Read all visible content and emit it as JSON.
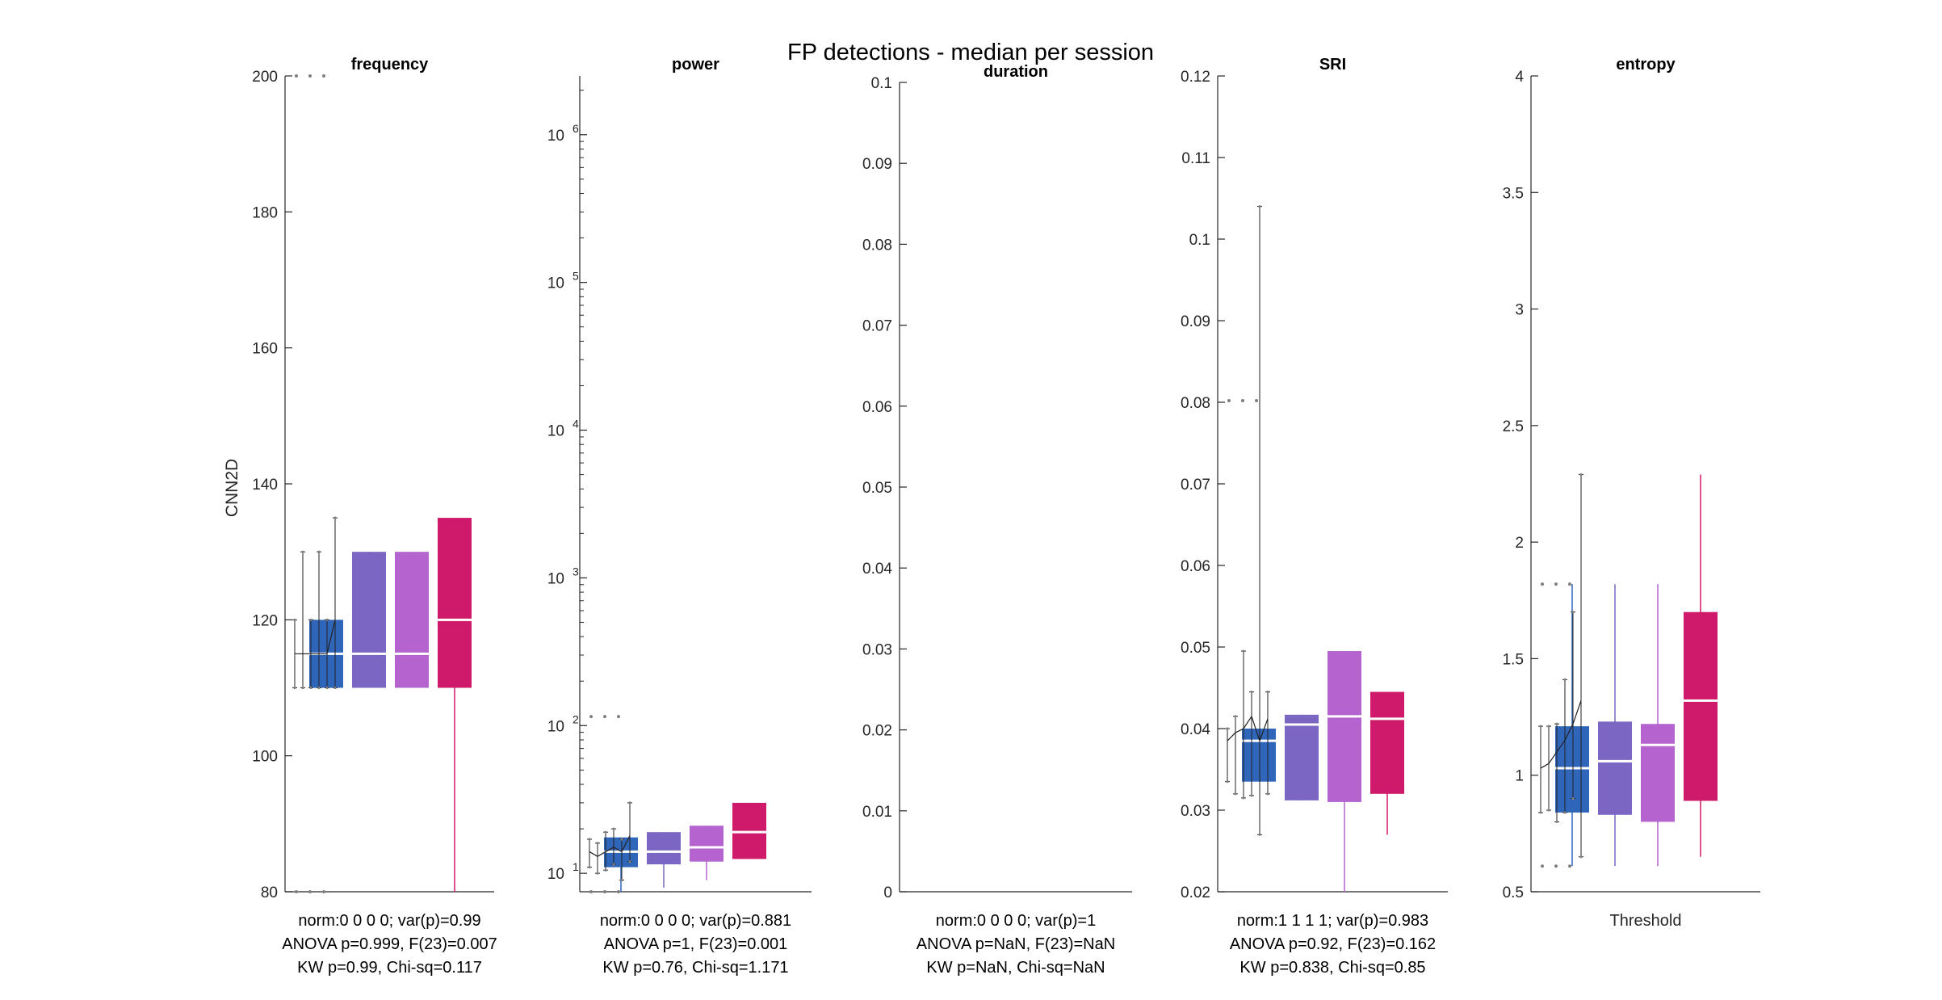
{
  "figure": {
    "title": "FP detections - median per session",
    "ylabel": "CNN2D",
    "xlabel_last": "Threshold"
  },
  "colors": {
    "blue": "#2F66BA",
    "violet": "#7B66C4",
    "orchid": "#B463CF",
    "magenta": "#CF1A6B",
    "axis": "#262626",
    "grid_marker": "#7f7f7f",
    "median_line": "#ffffff"
  },
  "chart_data": [
    {
      "type": "box",
      "title": "frequency",
      "yscale": "linear",
      "ylim": [
        80,
        200
      ],
      "yticks": [
        80,
        100,
        120,
        140,
        160,
        180,
        200
      ],
      "ytick_labels": [
        "80",
        "100",
        "120",
        "140",
        "160",
        "180",
        "200"
      ],
      "boxes": [
        {
          "q1": 110,
          "median": 115,
          "q3": 120,
          "whisker_low": 110,
          "whisker_high": 120
        },
        {
          "q1": 110,
          "median": 115,
          "q3": 130,
          "whisker_low": 110,
          "whisker_high": 130
        },
        {
          "q1": 110,
          "median": 115,
          "q3": 130,
          "whisker_low": 110,
          "whisker_high": 130
        },
        {
          "q1": 110,
          "median": 120,
          "q3": 135,
          "whisker_low": 80,
          "whisker_high": 135
        }
      ],
      "outlier_dots_top": 200,
      "outlier_dots_bottom": 80,
      "sessions": [
        {
          "low": 110,
          "mid": 115,
          "high": 120
        },
        {
          "low": 110,
          "mid": 115,
          "high": 130
        },
        {
          "low": 110,
          "mid": 115,
          "high": 120
        },
        {
          "low": 110,
          "mid": 115,
          "high": 130
        },
        {
          "low": 110,
          "mid": 115,
          "high": 120
        },
        {
          "low": 110,
          "mid": 120,
          "high": 135
        }
      ],
      "stats": [
        "norm:0  0  0  0; var(p)=0.99",
        "ANOVA p=0.999, F(23)=0.007",
        "KW p=0.99, Chi-sq=0.117"
      ]
    },
    {
      "type": "box",
      "title": "power",
      "yscale": "log",
      "ylim": [
        7.5,
        2500000
      ],
      "yticks": [
        10,
        100,
        1000,
        10000,
        100000,
        1000000
      ],
      "ytick_labels": [
        "10",
        "10",
        "10",
        "10",
        "10",
        "10"
      ],
      "ytick_exponents": [
        "1",
        "2",
        "3",
        "4",
        "5",
        "6"
      ],
      "boxes": [
        {
          "q1": 11,
          "median": 14,
          "q3": 17.5,
          "whisker_low": 7.5,
          "whisker_high": 17.5
        },
        {
          "q1": 11.5,
          "median": 14,
          "q3": 19,
          "whisker_low": 8,
          "whisker_high": 19
        },
        {
          "q1": 12,
          "median": 15,
          "q3": 21,
          "whisker_low": 9,
          "whisker_high": 21
        },
        {
          "q1": 12.5,
          "median": 19,
          "q3": 30,
          "whisker_low": 12.5,
          "whisker_high": 30
        }
      ],
      "outlier_dots_top": 115,
      "outlier_dots_bottom": 7.5,
      "sessions": [
        {
          "low": 11,
          "mid": 14,
          "high": 17
        },
        {
          "low": 10,
          "mid": 13,
          "high": 16
        },
        {
          "low": 10.5,
          "mid": 14,
          "high": 19
        },
        {
          "low": 11.5,
          "mid": 15,
          "high": 20
        },
        {
          "low": 9,
          "mid": 14,
          "high": 17
        },
        {
          "low": 12,
          "mid": 18,
          "high": 30
        }
      ],
      "stats": [
        "norm:0  0  0  0; var(p)=0.881",
        "ANOVA p=1, F(23)=0.001",
        "KW p=0.76, Chi-sq=1.171"
      ]
    },
    {
      "type": "box",
      "title": "duration",
      "yscale": "linear",
      "ylim": [
        0,
        0.1
      ],
      "yticks": [
        0,
        0.01,
        0.02,
        0.03,
        0.04,
        0.05,
        0.06,
        0.07,
        0.08,
        0.09,
        0.1
      ],
      "ytick_labels": [
        "0",
        "0.01",
        "0.02",
        "0.03",
        "0.04",
        "0.05",
        "0.06",
        "0.07",
        "0.08",
        "0.09",
        "0.1"
      ],
      "boxes": [],
      "sessions": [],
      "stats": [
        "norm:0  0  0  0; var(p)=1",
        "ANOVA p=NaN, F(23)=NaN",
        "KW p=NaN, Chi-sq=NaN"
      ]
    },
    {
      "type": "box",
      "title": "SRI",
      "yscale": "linear",
      "ylim": [
        0.02,
        0.12
      ],
      "yticks": [
        0.02,
        0.03,
        0.04,
        0.05,
        0.06,
        0.07,
        0.08,
        0.09,
        0.1,
        0.11,
        0.12
      ],
      "ytick_labels": [
        "0.02",
        "0.03",
        "0.04",
        "0.05",
        "0.06",
        "0.07",
        "0.08",
        "0.09",
        "0.1",
        "0.11",
        "0.12"
      ],
      "boxes": [
        {
          "q1": 0.0335,
          "median": 0.0385,
          "q3": 0.04,
          "whisker_low": 0.0335,
          "whisker_high": 0.04
        },
        {
          "q1": 0.0312,
          "median": 0.0405,
          "q3": 0.0417,
          "whisker_low": 0.0312,
          "whisker_high": 0.0417
        },
        {
          "q1": 0.031,
          "median": 0.0415,
          "q3": 0.0495,
          "whisker_low": 0.02,
          "whisker_high": 0.0495
        },
        {
          "q1": 0.032,
          "median": 0.0412,
          "q3": 0.0445,
          "whisker_low": 0.027,
          "whisker_high": 0.0445
        }
      ],
      "outlier_dots_top": 0.0802,
      "sessions": [
        {
          "low": 0.0335,
          "mid": 0.0385,
          "high": 0.04
        },
        {
          "low": 0.032,
          "mid": 0.0395,
          "high": 0.0415
        },
        {
          "low": 0.0315,
          "mid": 0.04,
          "high": 0.0495
        },
        {
          "low": 0.0318,
          "mid": 0.0415,
          "high": 0.0445
        },
        {
          "low": 0.027,
          "mid": 0.0385,
          "high": 0.104
        },
        {
          "low": 0.032,
          "mid": 0.0412,
          "high": 0.0445
        }
      ],
      "stats": [
        "norm:1  1  1  1; var(p)=0.983",
        "ANOVA p=0.92, F(23)=0.162",
        "KW p=0.838, Chi-sq=0.85"
      ]
    },
    {
      "type": "box",
      "title": "entropy",
      "yscale": "linear",
      "ylim": [
        0.5,
        4
      ],
      "yticks": [
        0.5,
        1,
        1.5,
        2,
        2.5,
        3,
        3.5,
        4
      ],
      "ytick_labels": [
        "0.5",
        "1",
        "1.5",
        "2",
        "2.5",
        "3",
        "3.5",
        "4"
      ],
      "xlabel": "Threshold",
      "boxes": [
        {
          "q1": 0.84,
          "median": 1.03,
          "q3": 1.21,
          "whisker_low": 0.61,
          "whisker_high": 1.82
        },
        {
          "q1": 0.83,
          "median": 1.06,
          "q3": 1.23,
          "whisker_low": 0.61,
          "whisker_high": 1.82
        },
        {
          "q1": 0.8,
          "median": 1.13,
          "q3": 1.22,
          "whisker_low": 0.61,
          "whisker_high": 1.82
        },
        {
          "q1": 0.89,
          "median": 1.32,
          "q3": 1.7,
          "whisker_low": 0.65,
          "whisker_high": 2.29
        }
      ],
      "outlier_dots_top": 1.82,
      "outlier_dots_bottom": 0.61,
      "sessions": [
        {
          "low": 0.84,
          "mid": 1.03,
          "high": 1.21
        },
        {
          "low": 0.85,
          "mid": 1.05,
          "high": 1.21
        },
        {
          "low": 0.8,
          "mid": 1.1,
          "high": 1.22
        },
        {
          "low": 0.84,
          "mid": 1.15,
          "high": 1.41
        },
        {
          "low": 0.9,
          "mid": 1.22,
          "high": 1.7
        },
        {
          "low": 0.65,
          "mid": 1.32,
          "high": 2.29
        }
      ],
      "stats": []
    }
  ]
}
